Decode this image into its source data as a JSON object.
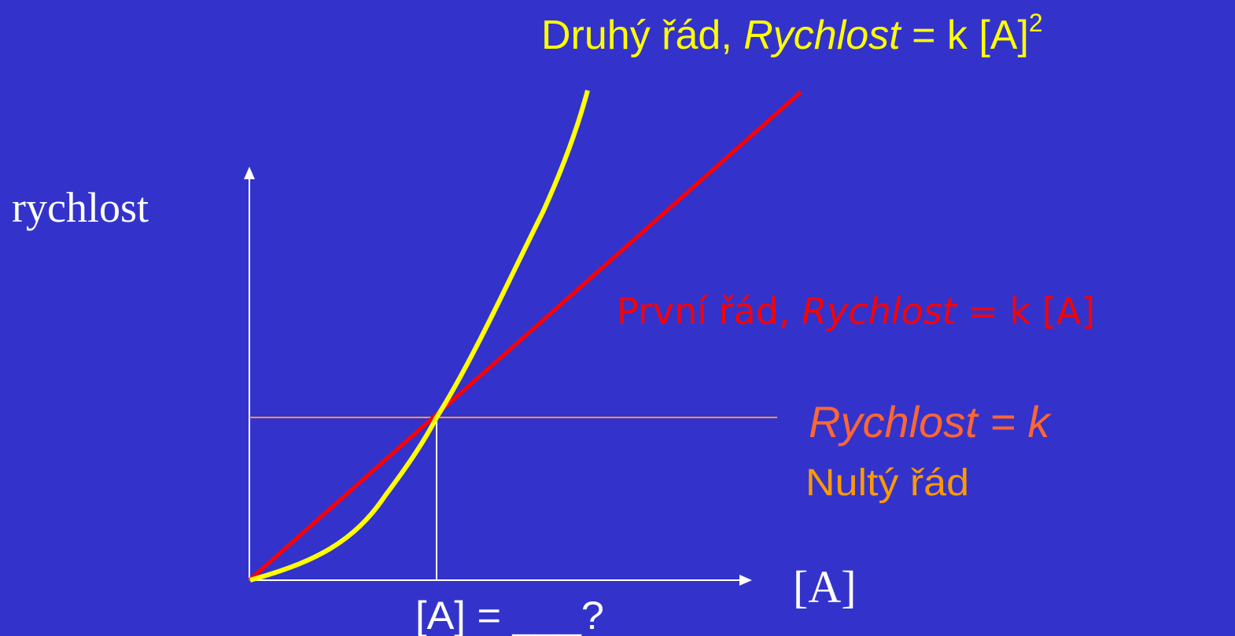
{
  "title": {
    "prefix": "Druhý řád, ",
    "variable": "Rychlost",
    "equation": " = k [A]",
    "exponent": "2"
  },
  "y_axis_label": "rychlost",
  "x_axis_label": "[A]",
  "first_order": {
    "prefix": "První řád, ",
    "variable": "Rychlost",
    "equation": " = k [A]"
  },
  "zero_order": {
    "equation": "Rychlost = k",
    "name": "Nultý řád"
  },
  "question": "[A] = ___?"
}
